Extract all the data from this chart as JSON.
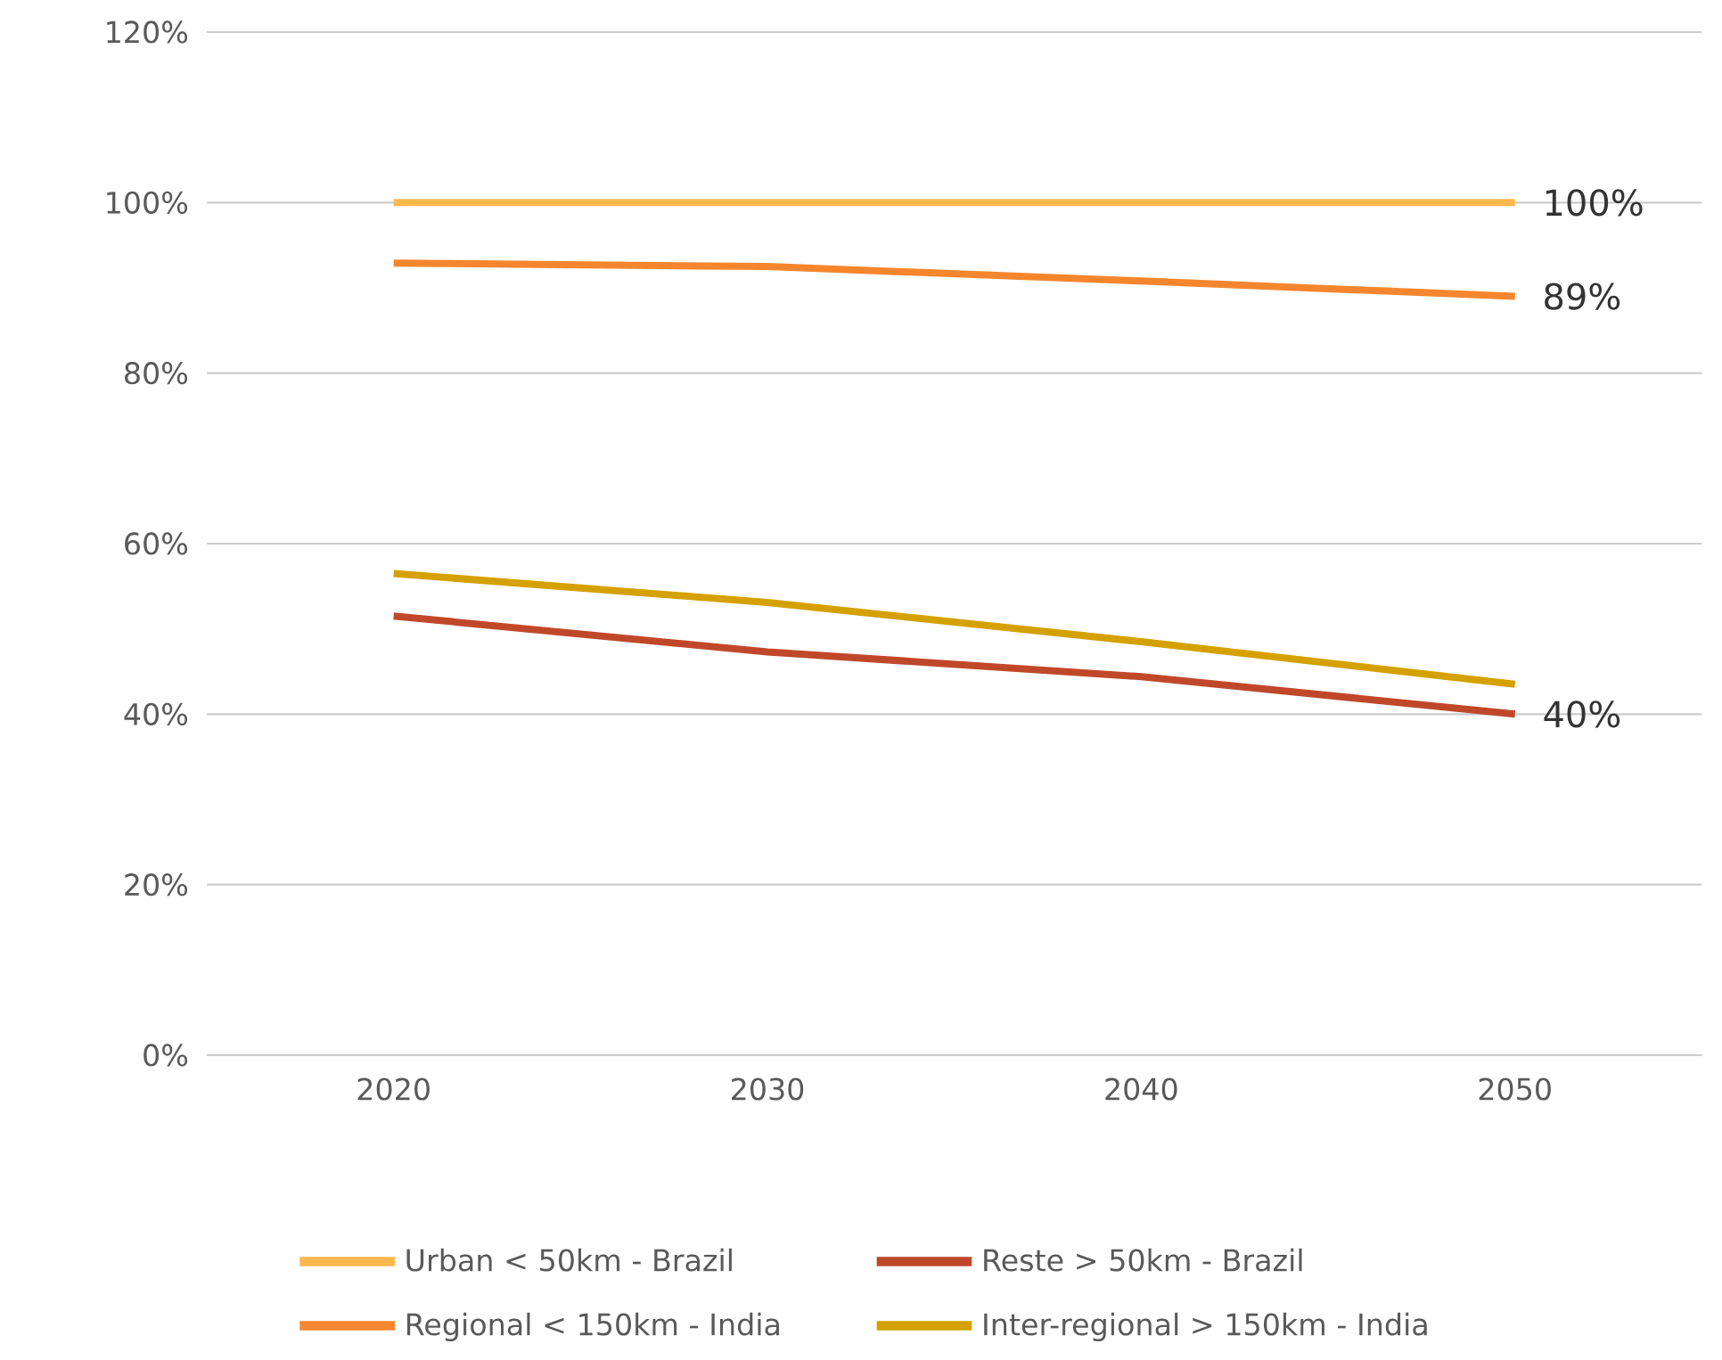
{
  "chart_data": {
    "type": "line",
    "categories": [
      "2020",
      "2030",
      "2040",
      "2050"
    ],
    "series": [
      {
        "name": "Urban < 50km - Brazil",
        "color": "#ffb84c",
        "values": [
          100,
          100,
          100,
          100
        ],
        "value_labels": [
          null,
          null,
          null,
          "100%"
        ]
      },
      {
        "name": "Reste > 50km - Brazil",
        "color": "#c0482a",
        "values": [
          51.5,
          47.3,
          44.4,
          40
        ],
        "value_labels": [
          null,
          null,
          null,
          "40%"
        ]
      },
      {
        "name": "Regional < 150km - India",
        "color": "#f5862e",
        "values": [
          92.9,
          92.5,
          90.8,
          89
        ],
        "value_labels": [
          null,
          null,
          null,
          "89%"
        ]
      },
      {
        "name": "Inter-regional > 150km - India",
        "color": "#d4a100",
        "values": [
          56.5,
          53.1,
          48.5,
          43.5
        ]
      }
    ],
    "ylim": [
      0,
      120
    ],
    "yticks": [
      {
        "value": 0,
        "label": "0%"
      },
      {
        "value": 20,
        "label": "20%"
      },
      {
        "value": 40,
        "label": "40%"
      },
      {
        "value": 60,
        "label": "60%"
      },
      {
        "value": 80,
        "label": "80%"
      },
      {
        "value": 100,
        "label": "100%"
      },
      {
        "value": 120,
        "label": "120%"
      }
    ],
    "grid": "y",
    "legend": "bottom",
    "marker": "none",
    "line_style": "solid"
  }
}
